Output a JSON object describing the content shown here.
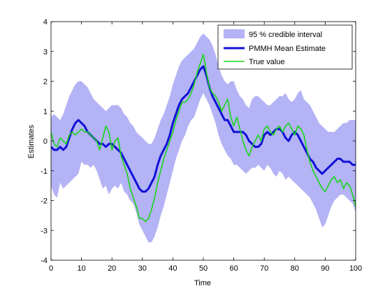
{
  "chart_data": {
    "type": "line",
    "title": "",
    "xlabel": "Time",
    "ylabel": "Estimates",
    "xlim": [
      0,
      100
    ],
    "ylim": [
      -4,
      4
    ],
    "xticks": [
      0,
      10,
      20,
      30,
      40,
      50,
      60,
      70,
      80,
      90,
      100
    ],
    "yticks": [
      -4,
      -3,
      -2,
      -1,
      0,
      1,
      2,
      3,
      4
    ],
    "grid": false,
    "legend": "top-right",
    "x": [
      0,
      1,
      2,
      3,
      4,
      5,
      6,
      7,
      8,
      9,
      10,
      11,
      12,
      13,
      14,
      15,
      16,
      17,
      18,
      19,
      20,
      21,
      22,
      23,
      24,
      25,
      26,
      27,
      28,
      29,
      30,
      31,
      32,
      33,
      34,
      35,
      36,
      37,
      38,
      39,
      40,
      41,
      42,
      43,
      44,
      45,
      46,
      47,
      48,
      49,
      50,
      51,
      52,
      53,
      54,
      55,
      56,
      57,
      58,
      59,
      60,
      61,
      62,
      63,
      64,
      65,
      66,
      67,
      68,
      69,
      70,
      71,
      72,
      73,
      74,
      75,
      76,
      77,
      78,
      79,
      80,
      81,
      82,
      83,
      84,
      85,
      86,
      87,
      88,
      89,
      90,
      91,
      92,
      93,
      94,
      95,
      96,
      97,
      98,
      99,
      100
    ],
    "series": [
      {
        "name": "95 % credible interval",
        "kind": "band",
        "color": "#b3b3f5",
        "upper": [
          0.8,
          0.9,
          0.8,
          0.7,
          0.9,
          1.2,
          1.5,
          1.7,
          1.9,
          2.0,
          2.0,
          1.9,
          1.8,
          1.6,
          1.4,
          1.3,
          1.2,
          1.1,
          1.0,
          1.1,
          1.2,
          1.2,
          1.2,
          1.1,
          0.9,
          0.8,
          0.6,
          0.5,
          0.3,
          0.2,
          0.1,
          0.0,
          -0.1,
          -0.1,
          0.1,
          0.4,
          0.7,
          0.9,
          1.2,
          1.5,
          1.9,
          2.2,
          2.5,
          2.7,
          2.8,
          2.9,
          3.0,
          3.1,
          3.3,
          3.5,
          3.6,
          3.5,
          3.4,
          3.2,
          2.9,
          2.5,
          2.2,
          2.0,
          1.9,
          2.0,
          2.0,
          1.7,
          1.5,
          1.4,
          1.2,
          1.1,
          1.4,
          1.5,
          1.5,
          1.4,
          1.3,
          1.2,
          1.2,
          1.3,
          1.4,
          1.5,
          1.5,
          1.6,
          1.4,
          1.3,
          1.4,
          1.6,
          1.7,
          1.4,
          1.3,
          1.2,
          1.0,
          0.8,
          0.6,
          0.5,
          0.4,
          0.3,
          0.3,
          0.3,
          0.4,
          0.5,
          0.6,
          0.6,
          0.7,
          0.7,
          0.7
        ],
        "lower": [
          -1.5,
          -1.8,
          -1.9,
          -1.4,
          -1.6,
          -1.5,
          -1.4,
          -1.3,
          -1.2,
          -1.1,
          -0.7,
          -0.8,
          -0.8,
          -0.9,
          -0.8,
          -1.0,
          -1.3,
          -1.6,
          -1.5,
          -1.8,
          -1.6,
          -1.5,
          -1.6,
          -1.4,
          -1.7,
          -1.8,
          -2.0,
          -2.1,
          -2.4,
          -2.8,
          -3.0,
          -3.2,
          -3.4,
          -3.4,
          -3.2,
          -2.9,
          -2.5,
          -2.2,
          -1.8,
          -1.4,
          -1.0,
          -0.6,
          -0.3,
          0.0,
          0.2,
          0.5,
          0.7,
          0.8,
          1.1,
          1.4,
          1.6,
          1.4,
          1.2,
          0.9,
          0.6,
          0.2,
          -0.1,
          -0.3,
          -0.5,
          -0.6,
          -0.8,
          -0.8,
          -0.9,
          -1.0,
          -1.1,
          -1.0,
          -0.9,
          -0.9,
          -0.8,
          -0.9,
          -1.0,
          -0.8,
          -0.9,
          -1.1,
          -1.2,
          -1.0,
          -1.1,
          -1.3,
          -1.2,
          -1.3,
          -1.4,
          -1.5,
          -1.6,
          -1.7,
          -1.8,
          -1.9,
          -2.1,
          -2.3,
          -2.6,
          -2.9,
          -2.8,
          -2.5,
          -2.2,
          -2.0,
          -1.9,
          -1.8,
          -1.8,
          -1.9,
          -2.0,
          -2.1,
          -2.4
        ]
      },
      {
        "name": "PMMH Mean Estimate",
        "kind": "line",
        "color": "#1010d6",
        "width": 3,
        "values": [
          -0.2,
          -0.3,
          -0.3,
          -0.2,
          -0.3,
          -0.2,
          0.1,
          0.4,
          0.6,
          0.7,
          0.6,
          0.5,
          0.3,
          0.2,
          0.1,
          0.0,
          -0.1,
          -0.1,
          -0.2,
          -0.1,
          -0.1,
          -0.2,
          -0.3,
          -0.4,
          -0.6,
          -0.8,
          -1.0,
          -1.2,
          -1.4,
          -1.6,
          -1.7,
          -1.7,
          -1.6,
          -1.4,
          -1.2,
          -0.8,
          -0.5,
          -0.3,
          -0.1,
          0.2,
          0.6,
          0.9,
          1.2,
          1.4,
          1.5,
          1.6,
          1.8,
          2.0,
          2.2,
          2.4,
          2.5,
          2.2,
          1.8,
          1.5,
          1.3,
          1.1,
          0.9,
          0.7,
          0.7,
          0.5,
          0.3,
          0.3,
          0.3,
          0.3,
          0.2,
          0.0,
          -0.1,
          -0.2,
          -0.2,
          -0.1,
          0.2,
          0.3,
          0.2,
          0.3,
          0.4,
          0.4,
          0.3,
          0.1,
          0.0,
          0.2,
          0.3,
          0.2,
          0.0,
          -0.2,
          -0.4,
          -0.6,
          -0.7,
          -0.9,
          -1.0,
          -1.1,
          -1.0,
          -0.9,
          -0.8,
          -0.7,
          -0.6,
          -0.6,
          -0.7,
          -0.7,
          -0.7,
          -0.8,
          -0.8
        ]
      },
      {
        "name": "True value",
        "kind": "line",
        "color": "#19d619",
        "width": 1.6,
        "values": [
          0.3,
          -0.1,
          -0.2,
          0.1,
          0.0,
          -0.1,
          0.2,
          0.3,
          0.2,
          0.3,
          0.4,
          0.3,
          0.3,
          0.2,
          0.1,
          0.0,
          -0.3,
          0.1,
          0.5,
          0.3,
          -0.3,
          0.0,
          0.1,
          -0.5,
          -0.8,
          -1.1,
          -1.6,
          -1.9,
          -2.2,
          -2.6,
          -2.6,
          -2.7,
          -2.6,
          -2.3,
          -1.9,
          -1.4,
          -1.0,
          -0.6,
          -0.3,
          0.0,
          0.3,
          0.7,
          1.0,
          1.3,
          1.3,
          1.4,
          1.6,
          1.9,
          2.3,
          2.6,
          2.9,
          2.3,
          1.8,
          1.6,
          1.5,
          1.3,
          1.0,
          1.2,
          1.4,
          0.8,
          0.5,
          0.8,
          0.4,
          0.0,
          -0.3,
          -0.5,
          -0.2,
          0.0,
          0.2,
          0.0,
          0.4,
          0.5,
          0.3,
          0.2,
          0.4,
          0.5,
          0.3,
          0.5,
          0.6,
          0.4,
          0.2,
          0.5,
          0.4,
          0.2,
          -0.3,
          -0.7,
          -1.0,
          -1.2,
          -1.4,
          -1.6,
          -1.7,
          -1.5,
          -1.3,
          -1.2,
          -1.4,
          -1.3,
          -1.6,
          -1.4,
          -1.5,
          -1.8,
          -2.2
        ]
      }
    ]
  }
}
